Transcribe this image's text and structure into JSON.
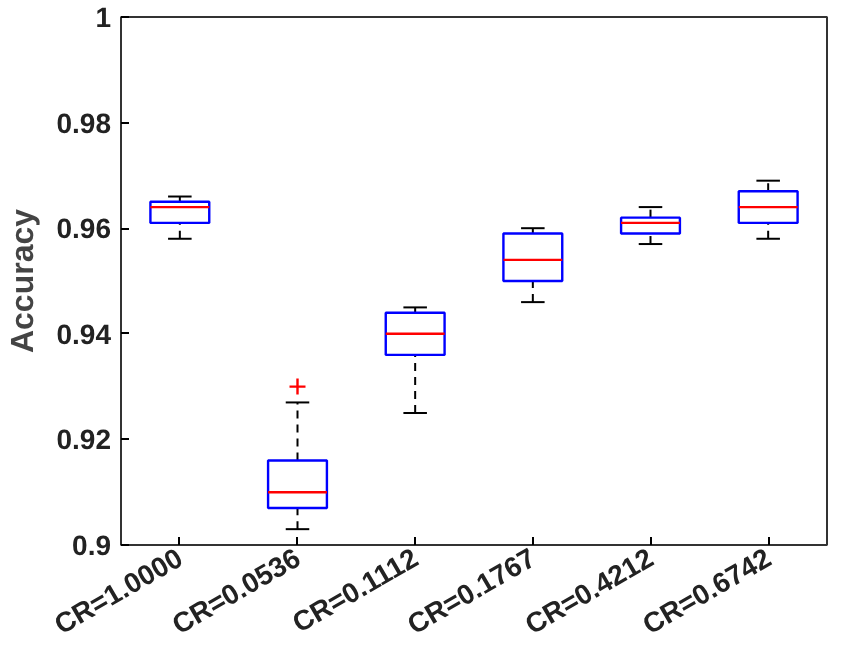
{
  "chart_data": {
    "type": "box",
    "ylabel": "Accuracy",
    "categories": [
      "CR=1.0000",
      "CR=0.0536",
      "CR=0.1112",
      "CR=0.1767",
      "CR=0.4212",
      "CR=0.6742"
    ],
    "ylim": [
      0.9,
      1
    ],
    "yticks": [
      0.9,
      0.92,
      0.94,
      0.96,
      0.98,
      1
    ],
    "grid": false,
    "series": [
      {
        "color": "#0000ff",
        "boxes": [
          {
            "low": 0.958,
            "q1": 0.961,
            "median": 0.964,
            "q3": 0.965,
            "high": 0.966
          },
          {
            "low": 0.903,
            "q1": 0.907,
            "median": 0.91,
            "q3": 0.916,
            "high": 0.927,
            "outliers": [
              0.93
            ]
          },
          {
            "low": 0.925,
            "q1": 0.936,
            "median": 0.94,
            "q3": 0.944,
            "high": 0.945
          },
          {
            "low": 0.946,
            "q1": 0.95,
            "median": 0.954,
            "q3": 0.959,
            "high": 0.96
          },
          {
            "low": 0.957,
            "q1": 0.959,
            "median": 0.961,
            "q3": 0.962,
            "high": 0.964
          },
          {
            "low": 0.958,
            "q1": 0.961,
            "median": 0.964,
            "q3": 0.967,
            "high": 0.969
          }
        ]
      }
    ]
  }
}
